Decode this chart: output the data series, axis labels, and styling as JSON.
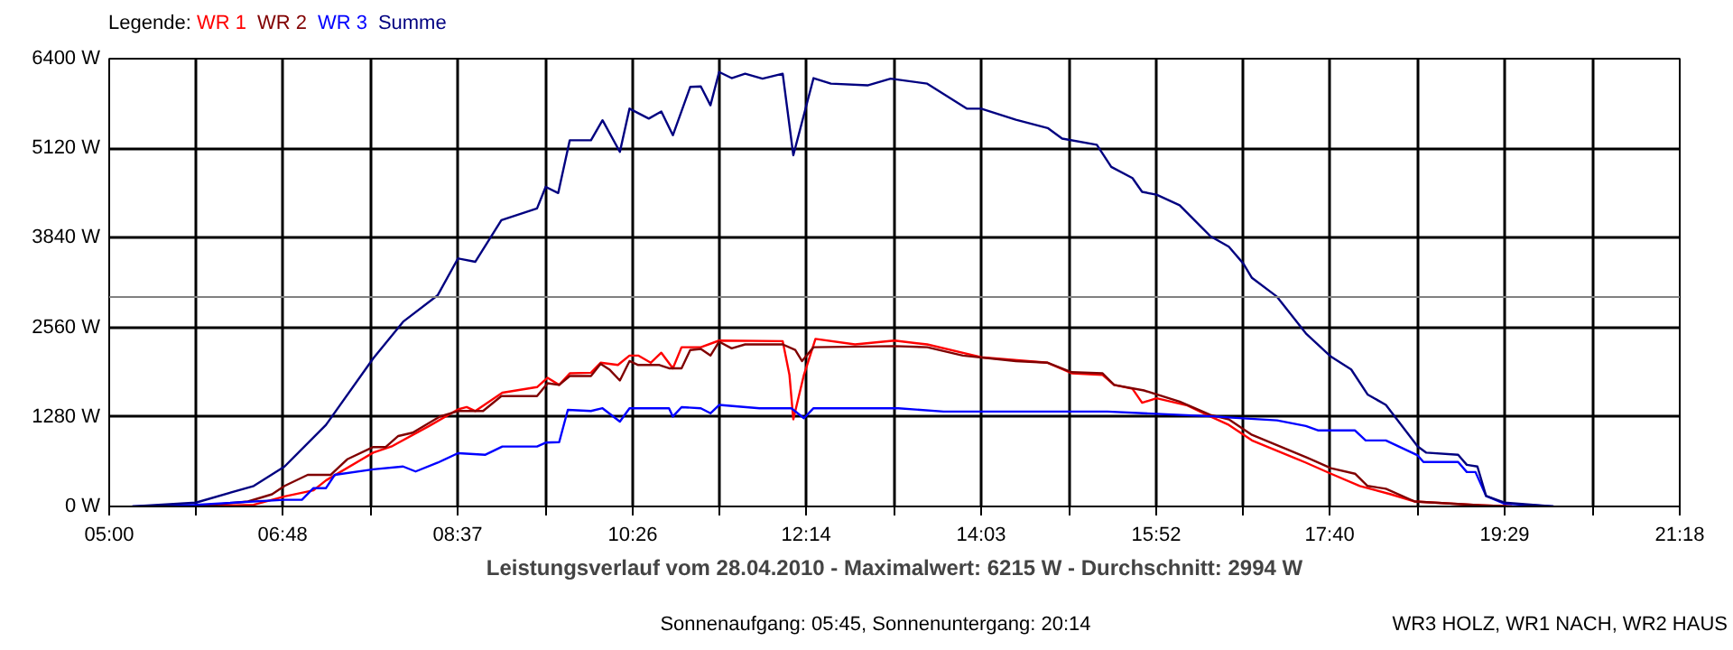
{
  "chart_data": {
    "type": "line",
    "legend_title": "Legende:",
    "grid": true,
    "marker": "none",
    "line_style": "solid",
    "xlabel": "Leistungsverlauf vom 28.04.2010 - Maximalwert: 6215 W - Durchschnitt: 2994 W",
    "annotations": [
      "Sonnenaufgang: 05:45, Sonnenuntergang: 20:14",
      "WR3 HOLZ, WR1 NACH, WR2 HAUS"
    ],
    "xlim": [
      5,
      21.3
    ],
    "xticks": [
      {
        "value": 5,
        "label": "05:00"
      },
      {
        "value": 5.9056,
        "label": null
      },
      {
        "value": 6.8,
        "label": "06:48"
      },
      {
        "value": 7.7083,
        "label": null
      },
      {
        "value": 8.6167,
        "label": "08:37"
      },
      {
        "value": 9.525,
        "label": null
      },
      {
        "value": 10.4333,
        "label": "10:26"
      },
      {
        "value": 11.3333,
        "label": null
      },
      {
        "value": 12.2333,
        "label": "12:14"
      },
      {
        "value": 13.1417,
        "label": null
      },
      {
        "value": 14.05,
        "label": "14:03"
      },
      {
        "value": 14.9583,
        "label": null
      },
      {
        "value": 15.8667,
        "label": "15:52"
      },
      {
        "value": 16.7667,
        "label": null
      },
      {
        "value": 17.6667,
        "label": "17:40"
      },
      {
        "value": 18.575,
        "label": null
      },
      {
        "value": 19.4833,
        "label": "19:29"
      },
      {
        "value": 20.3944,
        "label": null
      },
      {
        "value": 21.3,
        "label": "21:18"
      }
    ],
    "ylim": [
      0,
      6400
    ],
    "yticks": [
      {
        "value": 0,
        "label": "0 W"
      },
      {
        "value": 1280,
        "label": "1280 W"
      },
      {
        "value": 2560,
        "label": "2560 W"
      },
      {
        "value": 3840,
        "label": "3840 W"
      },
      {
        "value": 5120,
        "label": "5120 W"
      },
      {
        "value": 6400,
        "label": "6400 W"
      }
    ],
    "ref_lines": [
      {
        "axis": "y",
        "value": 2994,
        "label": null,
        "color": "#808080"
      }
    ],
    "series": [
      {
        "name": "WR 1",
        "color": "#ff0000",
        "x": [
          5.9,
          6.5,
          6.82,
          7.12,
          7.25,
          7.74,
          7.94,
          8.32,
          8.62,
          8.71,
          8.8,
          9.08,
          9.44,
          9.55,
          9.67,
          9.78,
          10.0,
          10.1,
          10.28,
          10.4,
          10.49,
          10.62,
          10.73,
          10.85,
          10.94,
          11.14,
          11.33,
          11.99,
          12.06,
          12.1,
          12.21,
          12.33,
          12.74,
          13.15,
          13.49,
          14.05,
          14.74,
          14.99,
          15.31,
          15.43,
          15.62,
          15.72,
          15.87,
          16.19,
          16.43,
          16.62,
          16.86,
          17.42,
          17.68,
          17.98,
          18.3,
          18.55,
          19.24,
          19.56
        ],
        "values": [
          0,
          24,
          143,
          230,
          373,
          769,
          864,
          1150,
          1388,
          1420,
          1364,
          1626,
          1706,
          1840,
          1737,
          1903,
          1911,
          2054,
          2022,
          2157,
          2157,
          2054,
          2197,
          1975,
          2276,
          2276,
          2371,
          2363,
          1880,
          1245,
          1880,
          2395,
          2316,
          2371,
          2316,
          2133,
          2054,
          1903,
          1880,
          1737,
          1682,
          1483,
          1546,
          1443,
          1285,
          1166,
          944,
          626,
          468,
          293,
          174,
          71,
          16,
          0
        ]
      },
      {
        "name": "WR 2",
        "color": "#800000",
        "x": [
          5.9,
          6.44,
          6.69,
          6.82,
          7.06,
          7.3,
          7.47,
          7.74,
          7.87,
          8.0,
          8.15,
          8.43,
          8.62,
          8.88,
          9.07,
          9.44,
          9.55,
          9.67,
          9.78,
          10.0,
          10.1,
          10.19,
          10.3,
          10.4,
          10.49,
          10.71,
          10.81,
          10.94,
          11.03,
          11.14,
          11.24,
          11.33,
          11.46,
          11.6,
          11.99,
          12.12,
          12.19,
          12.31,
          13.15,
          13.49,
          13.86,
          14.41,
          14.74,
          14.99,
          15.31,
          15.43,
          15.74,
          16.11,
          16.43,
          16.62,
          16.86,
          17.42,
          17.68,
          17.93,
          18.06,
          18.25,
          18.55,
          19.24,
          19.56
        ],
        "values": [
          0,
          71,
          174,
          293,
          452,
          452,
          674,
          849,
          849,
          1007,
          1055,
          1285,
          1364,
          1364,
          1578,
          1578,
          1761,
          1737,
          1864,
          1864,
          2038,
          1959,
          1800,
          2078,
          2022,
          2022,
          1975,
          1975,
          2236,
          2252,
          2157,
          2355,
          2260,
          2316,
          2316,
          2236,
          2078,
          2276,
          2292,
          2276,
          2157,
          2078,
          2054,
          1919,
          1903,
          1737,
          1658,
          1499,
          1309,
          1245,
          1023,
          706,
          547,
          468,
          293,
          254,
          71,
          16,
          0
        ]
      },
      {
        "name": "WR 3",
        "color": "#0000ff",
        "x": [
          5.24,
          5.9,
          6.82,
          7.0,
          7.12,
          7.25,
          7.34,
          7.74,
          8.05,
          8.18,
          8.41,
          8.62,
          8.9,
          9.08,
          9.44,
          9.53,
          9.67,
          9.76,
          10.0,
          10.12,
          10.3,
          10.4,
          10.81,
          10.85,
          10.94,
          11.14,
          11.24,
          11.33,
          11.75,
          12.08,
          12.21,
          12.31,
          13.19,
          13.66,
          15.36,
          16.49,
          16.65,
          17.12,
          17.42,
          17.55,
          17.93,
          18.04,
          18.25,
          18.58,
          18.64,
          19.0,
          19.09,
          19.18,
          19.29,
          19.48,
          19.99
        ],
        "values": [
          0,
          24,
          95,
          95,
          262,
          262,
          452,
          531,
          571,
          500,
          626,
          761,
          738,
          857,
          857,
          912,
          920,
          1380,
          1365,
          1404,
          1213,
          1404,
          1404,
          1285,
          1420,
          1404,
          1332,
          1451,
          1404,
          1404,
          1261,
          1404,
          1404,
          1356,
          1356,
          1285,
          1269,
          1230,
          1150,
          1087,
          1087,
          944,
          944,
          730,
          635,
          635,
          492,
          492,
          150,
          40,
          0
        ]
      },
      {
        "name": "Summe",
        "color": "#000080",
        "x": [
          5.24,
          5.9,
          6.5,
          6.82,
          7.25,
          7.74,
          8.05,
          8.41,
          8.62,
          8.8,
          9.07,
          9.44,
          9.53,
          9.66,
          9.78,
          10.0,
          10.12,
          10.3,
          10.4,
          10.6,
          10.73,
          10.85,
          11.03,
          11.14,
          11.24,
          11.33,
          11.46,
          11.6,
          11.78,
          11.99,
          12.1,
          12.31,
          12.49,
          12.87,
          13.11,
          13.49,
          13.9,
          14.05,
          14.41,
          14.74,
          14.89,
          15.25,
          15.4,
          15.62,
          15.72,
          15.87,
          16.11,
          16.43,
          16.62,
          16.77,
          16.86,
          17.12,
          17.42,
          17.68,
          17.89,
          18.06,
          18.25,
          18.58,
          18.67,
          19.0,
          19.09,
          19.2,
          19.29,
          19.48,
          19.99
        ],
        "values": [
          0,
          55,
          293,
          571,
          1166,
          2117,
          2640,
          3020,
          3545,
          3497,
          4092,
          4259,
          4568,
          4480,
          5234,
          5234,
          5520,
          5068,
          5686,
          5544,
          5646,
          5306,
          5996,
          6003,
          5734,
          6210,
          6122,
          6185,
          6115,
          6185,
          5020,
          6122,
          6043,
          6019,
          6115,
          6043,
          5686,
          5686,
          5527,
          5409,
          5258,
          5170,
          4854,
          4694,
          4497,
          4456,
          4306,
          3861,
          3712,
          3473,
          3267,
          2998,
          2474,
          2141,
          1958,
          1601,
          1451,
          857,
          769,
          738,
          595,
          571,
          150,
          55,
          0
        ]
      }
    ]
  }
}
